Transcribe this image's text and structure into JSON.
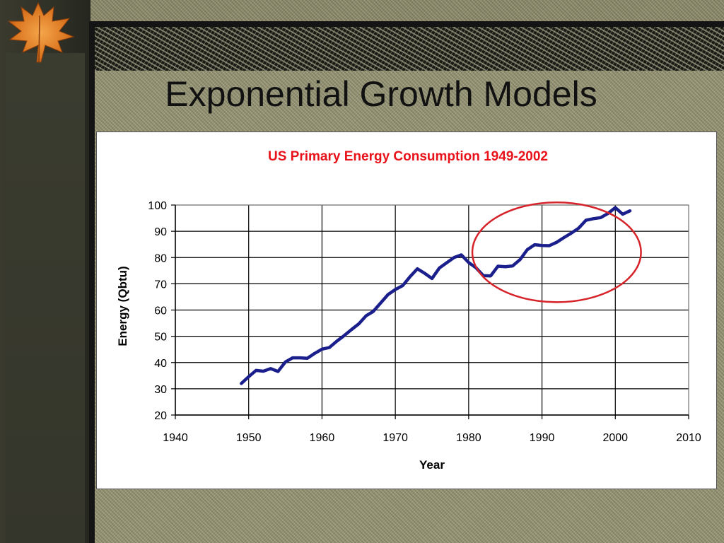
{
  "slide": {
    "title": "Exponential Growth Models"
  },
  "colors": {
    "line": "#1a1f8c",
    "title": "#e8121b",
    "circle": "#d6232a"
  },
  "icons": [
    "autumn-leaf-icon"
  ],
  "chart_data": {
    "type": "line",
    "title": "US Primary Energy Consumption 1949-2002",
    "xlabel": "Year",
    "ylabel": "Energy (Qbtu)",
    "xlim": [
      1940,
      2010
    ],
    "ylim": [
      20,
      100
    ],
    "xticks": [
      1940,
      1950,
      1960,
      1970,
      1980,
      1990,
      2000,
      2010
    ],
    "yticks": [
      20,
      30,
      40,
      50,
      60,
      70,
      80,
      90,
      100
    ],
    "grid": true,
    "series": [
      {
        "x": [
          1949,
          1950,
          1951,
          1952,
          1953,
          1954,
          1955,
          1956,
          1957,
          1958,
          1959,
          1960,
          1961,
          1962,
          1963,
          1964,
          1965,
          1966,
          1967,
          1968,
          1969,
          1970,
          1971,
          1972,
          1973,
          1974,
          1975,
          1976,
          1977,
          1978,
          1979,
          1980,
          1981,
          1982,
          1983,
          1984,
          1985,
          1986,
          1987,
          1988,
          1989,
          1990,
          1991,
          1992,
          1993,
          1994,
          1995,
          1996,
          1997,
          1998,
          1999,
          2000,
          2001,
          2002
        ],
        "y": [
          32.0,
          34.6,
          37.0,
          36.7,
          37.7,
          36.6,
          40.2,
          41.8,
          41.8,
          41.6,
          43.5,
          45.1,
          45.7,
          48.1,
          50.2,
          52.5,
          54.7,
          57.8,
          59.5,
          62.7,
          65.9,
          67.8,
          69.3,
          72.7,
          75.7,
          74.0,
          72.0,
          76.0,
          78.0,
          80.0,
          81.0,
          78.1,
          76.1,
          73.1,
          73.0,
          76.7,
          76.5,
          76.8,
          79.2,
          83.0,
          84.9,
          84.6,
          84.5,
          85.8,
          87.6,
          89.3,
          91.2,
          94.2,
          94.8,
          95.2,
          96.8,
          99.0,
          96.5,
          97.8
        ]
      }
    ],
    "annotations": [
      {
        "type": "ellipse",
        "center": [
          1992,
          82
        ],
        "radius_x": 11.5,
        "radius_y": 19,
        "color": "#d6232a"
      }
    ]
  }
}
